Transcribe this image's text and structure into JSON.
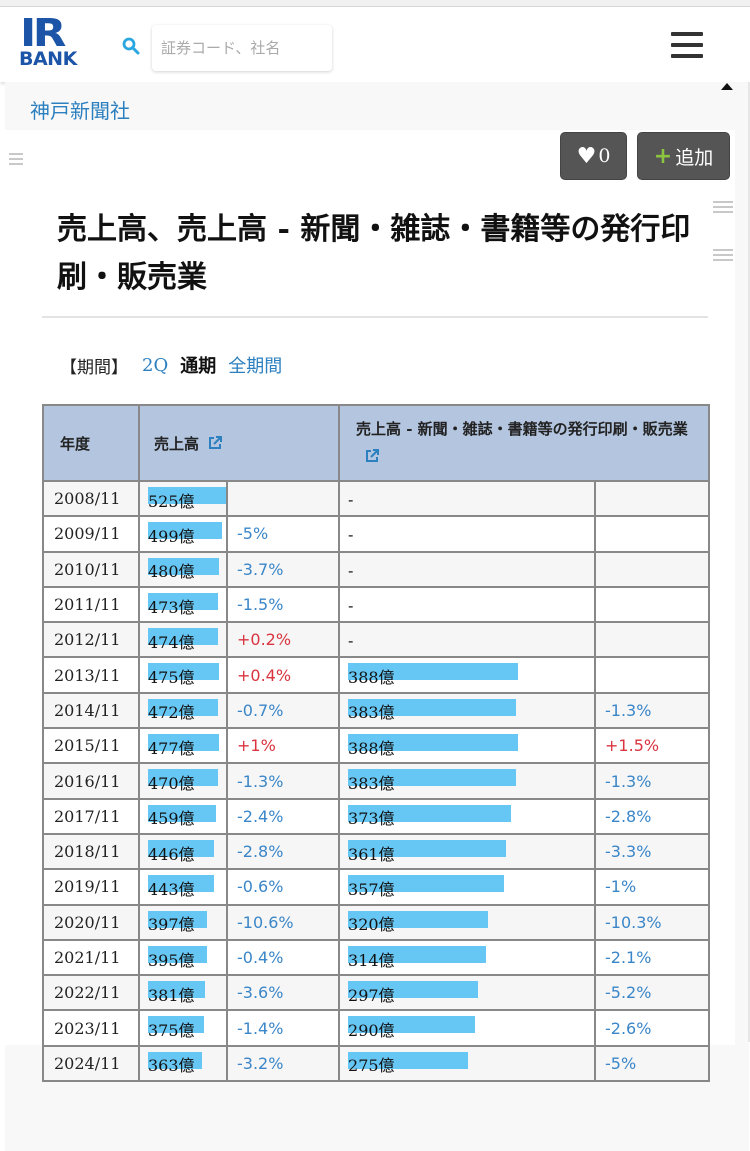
{
  "logo": {
    "line1": "IR",
    "line2": "BANK"
  },
  "search": {
    "placeholder": "証券コード、社名"
  },
  "company": "神戸新聞社",
  "buttons": {
    "fav_count": "0",
    "add_label": "追加"
  },
  "title": "売上高、売上高 - 新聞・雑誌・書籍等の発行印刷・販売業",
  "period": {
    "label": "【期間】",
    "options": [
      "2Q",
      "通期",
      "全期間"
    ],
    "active": "通期"
  },
  "table": {
    "headers": {
      "year": "年度",
      "sales": "売上高",
      "segment": "売上高 - 新聞・雑誌・書籍等の発行印刷・販売業"
    },
    "rows": [
      {
        "year": "2008/11",
        "sales": "525億",
        "sales_value": 525,
        "sales_chg": "",
        "seg": "-",
        "seg_value": null,
        "seg_chg": ""
      },
      {
        "year": "2009/11",
        "sales": "499億",
        "sales_value": 499,
        "sales_chg": "-5%",
        "seg": "-",
        "seg_value": null,
        "seg_chg": ""
      },
      {
        "year": "2010/11",
        "sales": "480億",
        "sales_value": 480,
        "sales_chg": "-3.7%",
        "seg": "-",
        "seg_value": null,
        "seg_chg": ""
      },
      {
        "year": "2011/11",
        "sales": "473億",
        "sales_value": 473,
        "sales_chg": "-1.5%",
        "seg": "-",
        "seg_value": null,
        "seg_chg": ""
      },
      {
        "year": "2012/11",
        "sales": "474億",
        "sales_value": 474,
        "sales_chg": "+0.2%",
        "seg": "-",
        "seg_value": null,
        "seg_chg": ""
      },
      {
        "year": "2013/11",
        "sales": "475億",
        "sales_value": 475,
        "sales_chg": "+0.4%",
        "seg": "388億",
        "seg_value": 388,
        "seg_chg": ""
      },
      {
        "year": "2014/11",
        "sales": "472億",
        "sales_value": 472,
        "sales_chg": "-0.7%",
        "seg": "383億",
        "seg_value": 383,
        "seg_chg": "-1.3%"
      },
      {
        "year": "2015/11",
        "sales": "477億",
        "sales_value": 477,
        "sales_chg": "+1%",
        "seg": "388億",
        "seg_value": 388,
        "seg_chg": "+1.5%"
      },
      {
        "year": "2016/11",
        "sales": "470億",
        "sales_value": 470,
        "sales_chg": "-1.3%",
        "seg": "383億",
        "seg_value": 383,
        "seg_chg": "-1.3%"
      },
      {
        "year": "2017/11",
        "sales": "459億",
        "sales_value": 459,
        "sales_chg": "-2.4%",
        "seg": "373億",
        "seg_value": 373,
        "seg_chg": "-2.8%"
      },
      {
        "year": "2018/11",
        "sales": "446億",
        "sales_value": 446,
        "sales_chg": "-2.8%",
        "seg": "361億",
        "seg_value": 361,
        "seg_chg": "-3.3%"
      },
      {
        "year": "2019/11",
        "sales": "443億",
        "sales_value": 443,
        "sales_chg": "-0.6%",
        "seg": "357億",
        "seg_value": 357,
        "seg_chg": "-1%"
      },
      {
        "year": "2020/11",
        "sales": "397億",
        "sales_value": 397,
        "sales_chg": "-10.6%",
        "seg": "320億",
        "seg_value": 320,
        "seg_chg": "-10.3%"
      },
      {
        "year": "2021/11",
        "sales": "395億",
        "sales_value": 395,
        "sales_chg": "-0.4%",
        "seg": "314億",
        "seg_value": 314,
        "seg_chg": "-2.1%"
      },
      {
        "year": "2022/11",
        "sales": "381億",
        "sales_value": 381,
        "sales_chg": "-3.6%",
        "seg": "297億",
        "seg_value": 297,
        "seg_chg": "-5.2%"
      },
      {
        "year": "2023/11",
        "sales": "375億",
        "sales_value": 375,
        "sales_chg": "-1.4%",
        "seg": "290億",
        "seg_value": 290,
        "seg_chg": "-2.6%"
      },
      {
        "year": "2024/11",
        "sales": "363億",
        "sales_value": 363,
        "sales_chg": "-3.2%",
        "seg": "275億",
        "seg_value": 275,
        "seg_chg": "-5%"
      }
    ]
  },
  "colors": {
    "bar": "#66c6f4",
    "header_bg": "#b3c5df",
    "negative": "#3a86c8",
    "positive": "#d9343f",
    "link": "#2d80c0",
    "logo": "#1c55a8"
  },
  "icons": [
    "search-icon",
    "hamburger-menu-icon",
    "heart-icon",
    "plus-icon",
    "external-link-icon",
    "caret-up-icon",
    "drag-handle-icon"
  ]
}
